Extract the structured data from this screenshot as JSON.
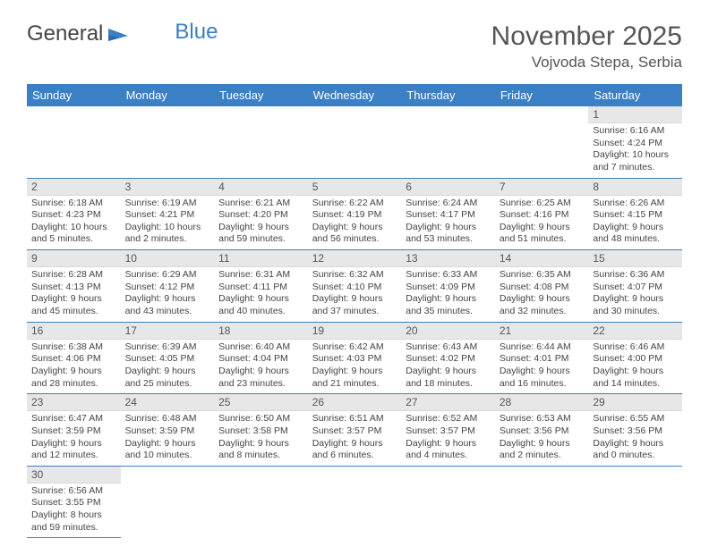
{
  "logo": {
    "text1": "General",
    "text2": "Blue"
  },
  "title": "November 2025",
  "location": "Vojvoda Stepa, Serbia",
  "colors": {
    "header_bg": "#3b7fc4",
    "header_text": "#ffffff",
    "daynum_bg": "#e7e7e7",
    "row_border": "#3b7fc4",
    "body_text": "#444444",
    "page_bg": "#ffffff"
  },
  "weekdays": [
    "Sunday",
    "Monday",
    "Tuesday",
    "Wednesday",
    "Thursday",
    "Friday",
    "Saturday"
  ],
  "first_weekday_index": 6,
  "days": [
    {
      "n": 1,
      "sunrise": "6:16 AM",
      "sunset": "4:24 PM",
      "daylight": "10 hours and 7 minutes."
    },
    {
      "n": 2,
      "sunrise": "6:18 AM",
      "sunset": "4:23 PM",
      "daylight": "10 hours and 5 minutes."
    },
    {
      "n": 3,
      "sunrise": "6:19 AM",
      "sunset": "4:21 PM",
      "daylight": "10 hours and 2 minutes."
    },
    {
      "n": 4,
      "sunrise": "6:21 AM",
      "sunset": "4:20 PM",
      "daylight": "9 hours and 59 minutes."
    },
    {
      "n": 5,
      "sunrise": "6:22 AM",
      "sunset": "4:19 PM",
      "daylight": "9 hours and 56 minutes."
    },
    {
      "n": 6,
      "sunrise": "6:24 AM",
      "sunset": "4:17 PM",
      "daylight": "9 hours and 53 minutes."
    },
    {
      "n": 7,
      "sunrise": "6:25 AM",
      "sunset": "4:16 PM",
      "daylight": "9 hours and 51 minutes."
    },
    {
      "n": 8,
      "sunrise": "6:26 AM",
      "sunset": "4:15 PM",
      "daylight": "9 hours and 48 minutes."
    },
    {
      "n": 9,
      "sunrise": "6:28 AM",
      "sunset": "4:13 PM",
      "daylight": "9 hours and 45 minutes."
    },
    {
      "n": 10,
      "sunrise": "6:29 AM",
      "sunset": "4:12 PM",
      "daylight": "9 hours and 43 minutes."
    },
    {
      "n": 11,
      "sunrise": "6:31 AM",
      "sunset": "4:11 PM",
      "daylight": "9 hours and 40 minutes."
    },
    {
      "n": 12,
      "sunrise": "6:32 AM",
      "sunset": "4:10 PM",
      "daylight": "9 hours and 37 minutes."
    },
    {
      "n": 13,
      "sunrise": "6:33 AM",
      "sunset": "4:09 PM",
      "daylight": "9 hours and 35 minutes."
    },
    {
      "n": 14,
      "sunrise": "6:35 AM",
      "sunset": "4:08 PM",
      "daylight": "9 hours and 32 minutes."
    },
    {
      "n": 15,
      "sunrise": "6:36 AM",
      "sunset": "4:07 PM",
      "daylight": "9 hours and 30 minutes."
    },
    {
      "n": 16,
      "sunrise": "6:38 AM",
      "sunset": "4:06 PM",
      "daylight": "9 hours and 28 minutes."
    },
    {
      "n": 17,
      "sunrise": "6:39 AM",
      "sunset": "4:05 PM",
      "daylight": "9 hours and 25 minutes."
    },
    {
      "n": 18,
      "sunrise": "6:40 AM",
      "sunset": "4:04 PM",
      "daylight": "9 hours and 23 minutes."
    },
    {
      "n": 19,
      "sunrise": "6:42 AM",
      "sunset": "4:03 PM",
      "daylight": "9 hours and 21 minutes."
    },
    {
      "n": 20,
      "sunrise": "6:43 AM",
      "sunset": "4:02 PM",
      "daylight": "9 hours and 18 minutes."
    },
    {
      "n": 21,
      "sunrise": "6:44 AM",
      "sunset": "4:01 PM",
      "daylight": "9 hours and 16 minutes."
    },
    {
      "n": 22,
      "sunrise": "6:46 AM",
      "sunset": "4:00 PM",
      "daylight": "9 hours and 14 minutes."
    },
    {
      "n": 23,
      "sunrise": "6:47 AM",
      "sunset": "3:59 PM",
      "daylight": "9 hours and 12 minutes."
    },
    {
      "n": 24,
      "sunrise": "6:48 AM",
      "sunset": "3:59 PM",
      "daylight": "9 hours and 10 minutes."
    },
    {
      "n": 25,
      "sunrise": "6:50 AM",
      "sunset": "3:58 PM",
      "daylight": "9 hours and 8 minutes."
    },
    {
      "n": 26,
      "sunrise": "6:51 AM",
      "sunset": "3:57 PM",
      "daylight": "9 hours and 6 minutes."
    },
    {
      "n": 27,
      "sunrise": "6:52 AM",
      "sunset": "3:57 PM",
      "daylight": "9 hours and 4 minutes."
    },
    {
      "n": 28,
      "sunrise": "6:53 AM",
      "sunset": "3:56 PM",
      "daylight": "9 hours and 2 minutes."
    },
    {
      "n": 29,
      "sunrise": "6:55 AM",
      "sunset": "3:56 PM",
      "daylight": "9 hours and 0 minutes."
    },
    {
      "n": 30,
      "sunrise": "6:56 AM",
      "sunset": "3:55 PM",
      "daylight": "8 hours and 59 minutes."
    }
  ],
  "labels": {
    "sunrise": "Sunrise:",
    "sunset": "Sunset:",
    "daylight": "Daylight:"
  }
}
